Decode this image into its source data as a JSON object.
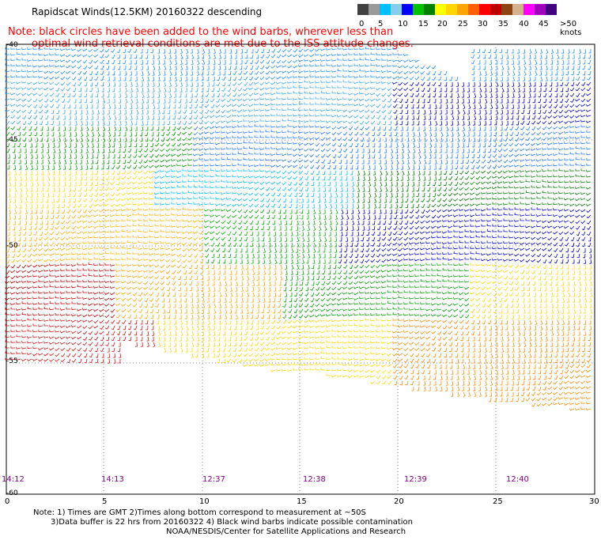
{
  "title": "Rapidscat Winds(12.5KM) 20160322 descending",
  "note": {
    "line1": "Note: black circles have been added to the wind barbs, wherever less than",
    "line2": "optimal wind retrieval conditions are met due to the ISS attitude changes."
  },
  "legend": {
    "colors": [
      "#404040",
      "#9a9a9a",
      "#00bfff",
      "#87ceeb",
      "#0000ff",
      "#00c000",
      "#008000",
      "#ffff00",
      "#ffd700",
      "#ffa500",
      "#ff6000",
      "#ff0000",
      "#c00000",
      "#8b4513",
      "#d2b48c",
      "#ff00ff",
      "#a000c0",
      "#400080"
    ],
    "labels": [
      "0",
      "5",
      "10",
      "15",
      "20",
      "25",
      "30",
      "35",
      "40",
      "45",
      ">50 knots"
    ]
  },
  "axes": {
    "lat_labels": [
      "-40",
      "-45",
      "-50",
      "-55",
      "-60"
    ],
    "lon_labels": [
      "0",
      "5",
      "10",
      "15",
      "20",
      "25",
      "30"
    ]
  },
  "times": [
    "14:12",
    "14:13",
    "12:37",
    "12:38",
    "12:39",
    "12:40"
  ],
  "footer": {
    "line1": "Note: 1) Times are GMT 2)Times along bottom correspond to measurement at ~50S",
    "line2": "3)Data buffer is 22 hrs from 20160322 4) Black wind barbs indicate possible contamination",
    "line3": "NOAA/NESDIS/Center for Satellite Applications and Research"
  }
}
